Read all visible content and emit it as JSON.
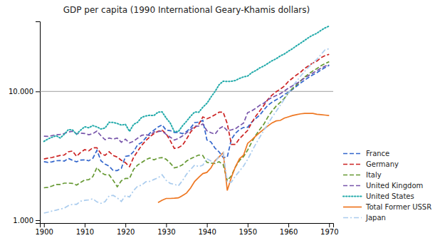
{
  "chart_data": {
    "type": "line",
    "title": "GDP per capita (1990 International Geary-Khamis dollars)",
    "x": [
      1900,
      1901,
      1902,
      1903,
      1904,
      1905,
      1906,
      1907,
      1908,
      1909,
      1910,
      1911,
      1912,
      1913,
      1914,
      1915,
      1916,
      1917,
      1918,
      1919,
      1920,
      1921,
      1922,
      1923,
      1924,
      1925,
      1926,
      1927,
      1928,
      1929,
      1930,
      1931,
      1932,
      1933,
      1934,
      1935,
      1936,
      1937,
      1938,
      1939,
      1940,
      1941,
      1942,
      1943,
      1944,
      1945,
      1946,
      1947,
      1948,
      1949,
      1950,
      1951,
      1952,
      1953,
      1954,
      1955,
      1956,
      1957,
      1958,
      1959,
      1960,
      1961,
      1962,
      1963,
      1964,
      1965,
      1966,
      1967,
      1968,
      1969,
      1970
    ],
    "series": [
      {
        "name": "France",
        "color": "#3366CC",
        "line_style": "dashed",
        "values": [
          2849,
          2814,
          2839,
          2897,
          2907,
          2877,
          3018,
          2919,
          2839,
          2927,
          2941,
          2893,
          3023,
          3484,
          2892,
          2723,
          2628,
          2428,
          2430,
          2526,
          3128,
          3171,
          3408,
          3859,
          4014,
          4363,
          4742,
          4997,
          5293,
          5497,
          4999,
          4960,
          4799,
          4805,
          4699,
          4882,
          5209,
          5728,
          5769,
          5960,
          4199,
          4043,
          3619,
          3388,
          3069,
          3095,
          4245,
          4739,
          5051,
          5250,
          5270,
          5774,
          6165,
          6558,
          7200,
          7826,
          8250,
          8623,
          8936,
          9470,
          9864,
          10340,
          10970,
          11618,
          12229,
          12879,
          13462,
          13981,
          14691,
          15318,
          16003
        ]
      },
      {
        "name": "Germany",
        "color": "#CC2222",
        "line_style": "dashed",
        "values": [
          2985,
          3037,
          3069,
          3130,
          3183,
          3209,
          3399,
          3444,
          3131,
          3363,
          3530,
          3459,
          3648,
          3648,
          3291,
          3191,
          3403,
          3176,
          3090,
          2918,
          2796,
          2604,
          3074,
          3429,
          3819,
          4147,
          4437,
          4704,
          4897,
          5006,
          4683,
          4147,
          3609,
          3659,
          3825,
          4262,
          4836,
          5243,
          5549,
          6337,
          6132,
          6318,
          6592,
          6899,
          6898,
          5616,
          3879,
          3881,
          4302,
          4626,
          4981,
          5726,
          6434,
          7076,
          7805,
          8702,
          9373,
          9935,
          10419,
          10984,
          11958,
          12662,
          13424,
          14123,
          15094,
          15846,
          16630,
          17219,
          18268,
          18965,
          19427
        ]
      },
      {
        "name": "Italy",
        "color": "#669933",
        "line_style": "dashed",
        "values": [
          1785,
          1800,
          1843,
          1895,
          1896,
          1940,
          1940,
          1932,
          1873,
          1966,
          2050,
          2065,
          2180,
          2564,
          2344,
          2254,
          2249,
          2038,
          1818,
          2024,
          2108,
          2111,
          2478,
          2679,
          2806,
          2951,
          3043,
          2940,
          3036,
          3065,
          2972,
          2776,
          2548,
          2592,
          2695,
          2879,
          3001,
          3106,
          3207,
          3177,
          2812,
          2771,
          2761,
          2841,
          2700,
          2032,
          2209,
          2589,
          2908,
          3120,
          3502,
          4038,
          4574,
          5082,
          5578,
          6350,
          7055,
          7697,
          8219,
          8829,
          9742,
          10537,
          11227,
          12087,
          12945,
          13690,
          14414,
          15047,
          15820,
          16439,
          17009
        ]
      },
      {
        "name": "United Kingdom",
        "color": "#7755AA",
        "line_style": "dashed",
        "values": [
          4492,
          4471,
          4543,
          4614,
          4636,
          4720,
          4839,
          4907,
          4684,
          4741,
          4715,
          4611,
          4699,
          4921,
          4527,
          4218,
          4346,
          4261,
          4340,
          4031,
          4252,
          3985,
          4104,
          4332,
          4561,
          4609,
          4546,
          4849,
          4871,
          4934,
          4634,
          4414,
          4195,
          4310,
          4511,
          4768,
          5043,
          5361,
          5390,
          5588,
          4946,
          4776,
          4659,
          5131,
          5362,
          4950,
          5028,
          5131,
          5413,
          5673,
          6847,
          7064,
          7411,
          7812,
          8117,
          8618,
          8993,
          9288,
          9611,
          10063,
          10600,
          11044,
          11520,
          12074,
          12731,
          13296,
          13909,
          14464,
          15176,
          15731,
          16059
        ]
      },
      {
        "name": "United States",
        "color": "#22AAAA",
        "line_style": "dotted",
        "values": [
          4091,
          4279,
          4406,
          4533,
          4347,
          4650,
          5052,
          5025,
          4654,
          5004,
          5319,
          5220,
          5430,
          5301,
          5108,
          5201,
          5758,
          5741,
          5638,
          5480,
          5552,
          4895,
          5540,
          5765,
          6295,
          6447,
          6527,
          6499,
          6896,
          6939,
          6213,
          5687,
          4877,
          4883,
          5401,
          5862,
          6422,
          6921,
          6892,
          7538,
          8082,
          9043,
          10003,
          11279,
          11997,
          11957,
          11986,
          12166,
          12616,
          12975,
          13150,
          13989,
          14522,
          15242,
          15770,
          16539,
          17320,
          17935,
          18850,
          19529,
          20539,
          21454,
          22641,
          23720,
          24933,
          26249,
          27376,
          28289,
          29820,
          31147,
          32170
        ]
      },
      {
        "name": "Total Former USSR",
        "color": "#EE7722",
        "line_style": "solid",
        "values": [
          null,
          null,
          null,
          null,
          null,
          null,
          null,
          null,
          null,
          null,
          null,
          null,
          null,
          null,
          null,
          null,
          null,
          null,
          null,
          null,
          null,
          null,
          null,
          null,
          null,
          null,
          null,
          null,
          1370,
          1430,
          1475,
          1475,
          1480,
          1490,
          1550,
          1625,
          1780,
          2000,
          2150,
          2300,
          2350,
          2550,
          2900,
          3100,
          3350,
          1700,
          2150,
          2600,
          3000,
          3200,
          3950,
          4200,
          4500,
          4800,
          5100,
          5400,
          5700,
          5900,
          5950,
          6200,
          6350,
          6500,
          6600,
          6700,
          6750,
          6750,
          6750,
          6650,
          6600,
          6550,
          6500
        ]
      },
      {
        "name": "Japan",
        "color": "#AACCEE",
        "line_style": "dashdot",
        "values": [
          1135,
          1154,
          1177,
          1197,
          1220,
          1240,
          1299,
          1329,
          1327,
          1404,
          1427,
          1437,
          1465,
          1387,
          1351,
          1393,
          1545,
          1558,
          1490,
          1398,
          1553,
          1515,
          1699,
          1838,
          1870,
          1988,
          2002,
          2070,
          2131,
          2252,
          2035,
          1929,
          1901,
          1850,
          2027,
          2274,
          2478,
          2683,
          2607,
          2676,
          3001,
          2880,
          2817,
          3171,
          3349,
          1974,
          1973,
          2204,
          2407,
          2634,
          2966,
          3418,
          3909,
          4428,
          4998,
          5617,
          6316,
          7000,
          7801,
          8700,
          9714,
          10935,
          11985,
          13157,
          14311,
          15484,
          16629,
          17793,
          19352,
          21043,
          21460
        ]
      }
    ],
    "xlim": [
      1899,
      1971
    ],
    "ylim": [
      950,
      35000
    ],
    "log": "y",
    "xticks": [
      1900,
      1910,
      1920,
      1930,
      1940,
      1950,
      1960,
      1970
    ],
    "yticks": [
      {
        "value": 1000,
        "label": "1.000"
      },
      {
        "value": 10000,
        "label": "10.000"
      }
    ],
    "hline": 10000,
    "grid": false,
    "legend": "right"
  }
}
